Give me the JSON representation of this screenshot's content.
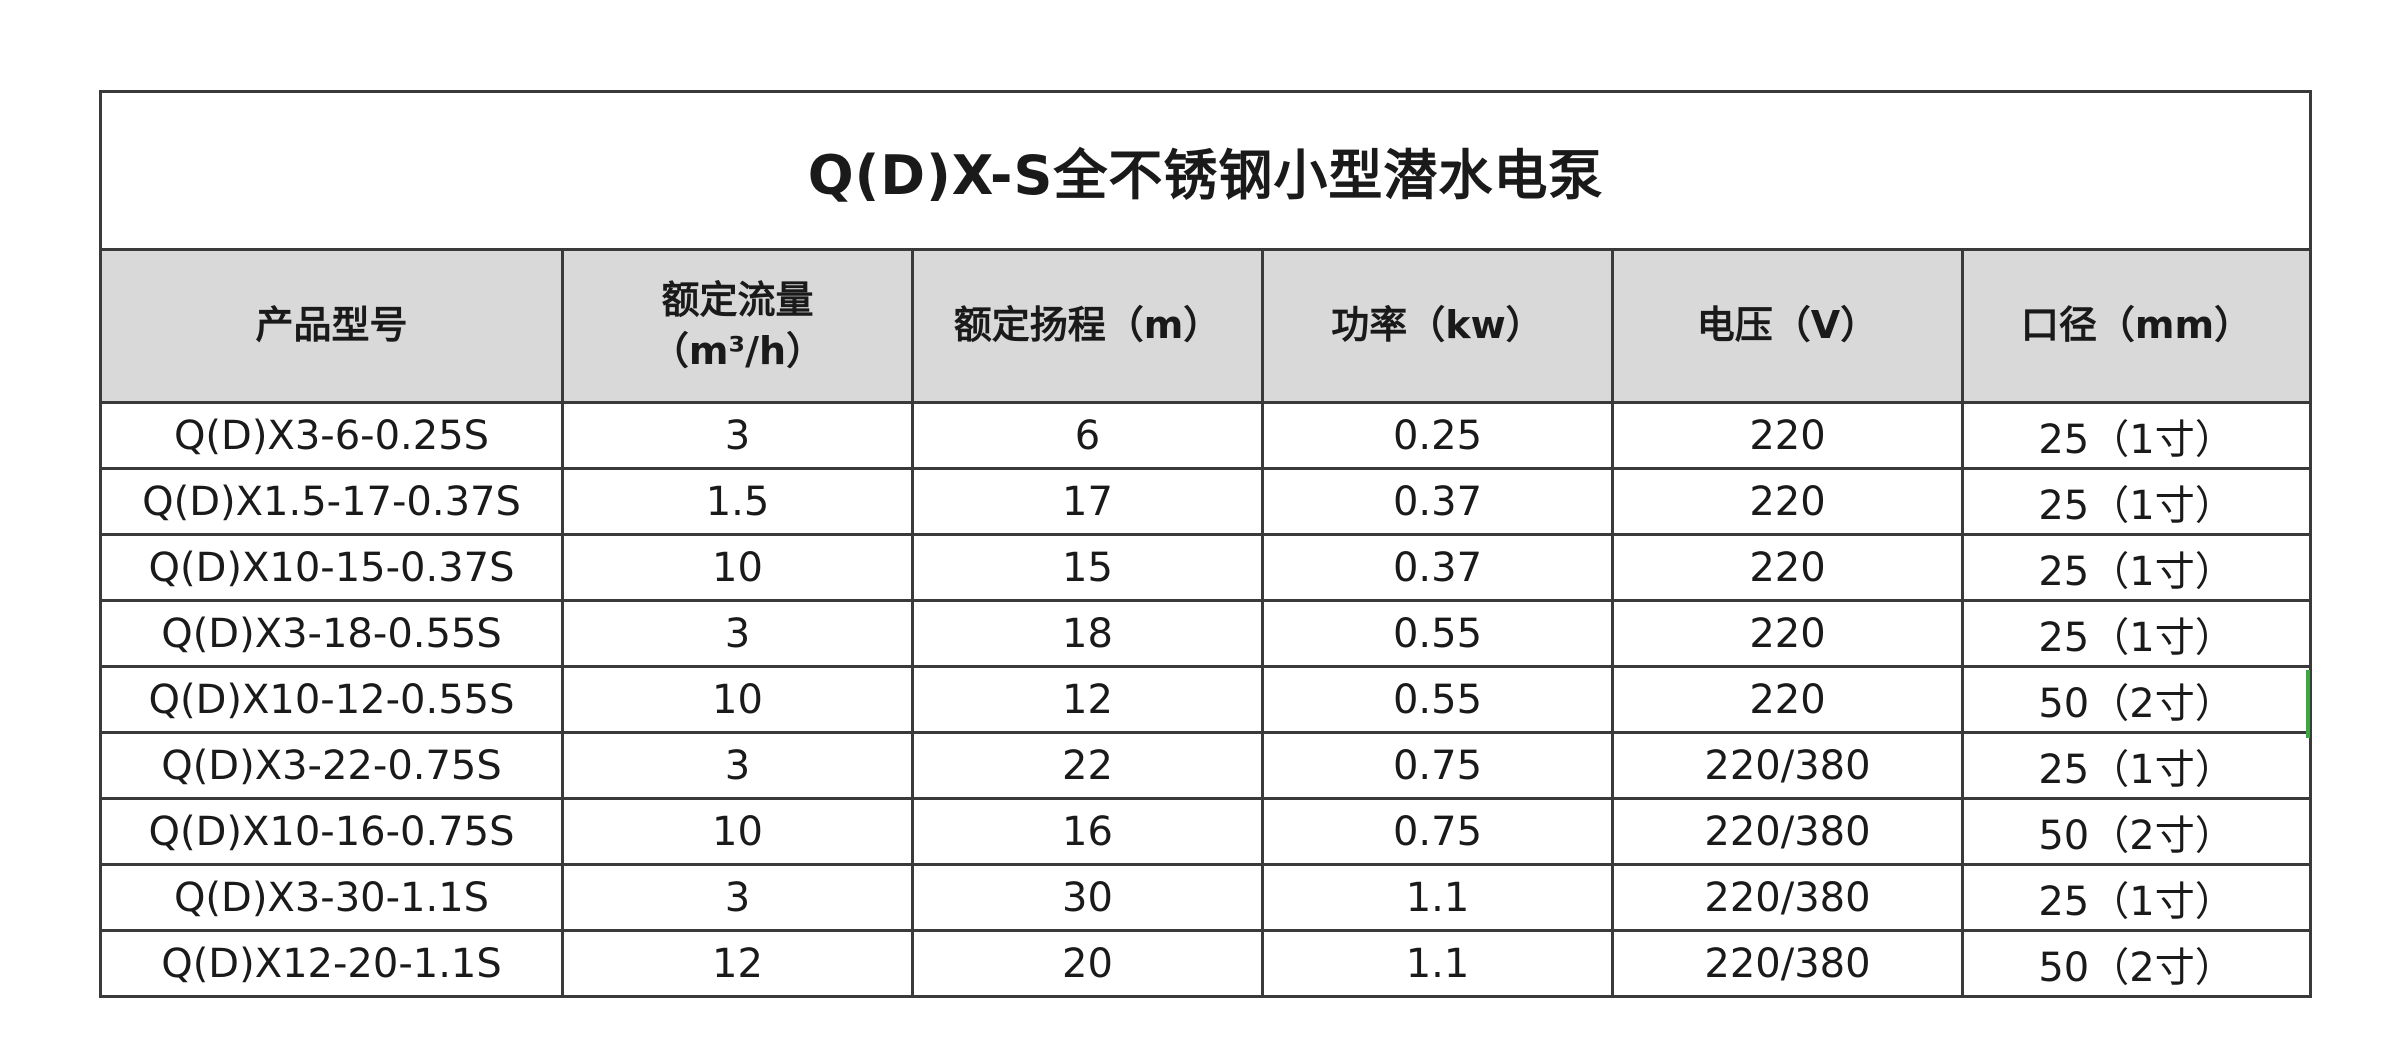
{
  "title": "Q(D)X-S全不锈钢小型潜水电泵",
  "headers": [
    "产品型号",
    "额定流量\n（m³/h）",
    "额定扬程（m）",
    "功率（kw）",
    "电压（V）",
    "口径（mm）"
  ],
  "header_lines": {
    "flow_line1": "额定流量",
    "flow_line2": "（m³/h）"
  },
  "rows": [
    [
      "Q(D)X3-6-0.25S",
      "3",
      "6",
      "0.25",
      "220",
      "25（1寸）"
    ],
    [
      "Q(D)X1.5-17-0.37S",
      "1.5",
      "17",
      "0.37",
      "220",
      "25（1寸）"
    ],
    [
      "Q(D)X10-15-0.37S",
      "10",
      "15",
      "0.37",
      "220",
      "25（1寸）"
    ],
    [
      "Q(D)X3-18-0.55S",
      "3",
      "18",
      "0.55",
      "220",
      "25（1寸）"
    ],
    [
      "Q(D)X10-12-0.55S",
      "10",
      "12",
      "0.55",
      "220",
      "50（2寸）"
    ],
    [
      "Q(D)X3-22-0.75S",
      "3",
      "22",
      "0.75",
      "220/380",
      "25（1寸）"
    ],
    [
      "Q(D)X10-16-0.75S",
      "10",
      "16",
      "0.75",
      "220/380",
      "50（2寸）"
    ],
    [
      "Q(D)X3-30-1.1S",
      "3",
      "30",
      "1.1",
      "220/380",
      "25（1寸）"
    ],
    [
      "Q(D)X12-20-1.1S",
      "12",
      "20",
      "1.1",
      "220/380",
      "50（2寸）"
    ]
  ],
  "colors": {
    "header_bg": "#d9d9d9",
    "border": "#3a3a3a",
    "accent": "#3aa842"
  }
}
